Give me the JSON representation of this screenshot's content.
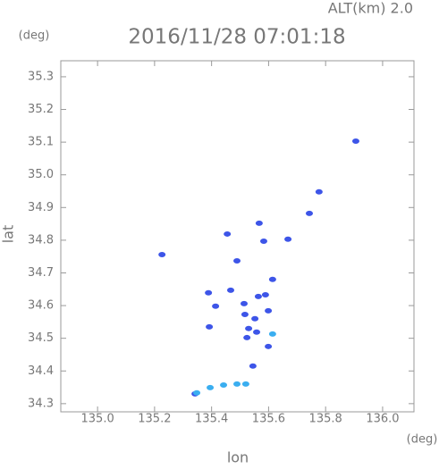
{
  "chart_data": {
    "type": "scatter",
    "title": "2016/11/28 07:01:18",
    "subtitle": "ALT(km) 2.0",
    "x_label": "lon",
    "y_label": "lat",
    "x_unit": "(deg)",
    "y_unit": "(deg)",
    "xlim": [
      134.871,
      136.11
    ],
    "ylim": [
      34.275,
      35.349
    ],
    "xticks": [
      {
        "value": 135,
        "label": "135.0"
      },
      135.2,
      135.4,
      135.6,
      135.8,
      {
        "value": 136,
        "label": "136.0"
      }
    ],
    "yticks": [
      34.3,
      34.4,
      34.5,
      34.6,
      34.7,
      34.8,
      34.9,
      {
        "value": 35,
        "label": "35.0"
      },
      35.1,
      35.2,
      35.3
    ],
    "series": [
      {
        "color": "#3d55e8",
        "x": [
          135.906,
          135.777,
          135.743,
          135.226,
          135.455,
          135.583,
          135.567,
          135.668,
          135.489,
          135.614,
          135.389,
          135.467,
          135.414,
          135.514,
          135.564,
          135.589,
          135.517,
          135.552,
          135.53,
          135.558,
          135.524,
          135.599,
          135.599,
          135.545,
          135.392,
          135.342
        ],
        "y": [
          35.103,
          34.948,
          34.882,
          34.756,
          34.819,
          34.797,
          34.852,
          34.803,
          34.737,
          34.68,
          34.639,
          34.647,
          34.598,
          34.606,
          34.628,
          34.633,
          34.573,
          34.56,
          34.53,
          34.519,
          34.502,
          34.584,
          34.475,
          34.415,
          34.535,
          34.33
        ]
      },
      {
        "color": "#3aaef0",
        "x": [
          135.614,
          135.348,
          135.395,
          135.442,
          135.489,
          135.52
        ],
        "y": [
          34.513,
          34.333,
          34.349,
          34.357,
          34.36,
          34.36
        ]
      }
    ]
  }
}
